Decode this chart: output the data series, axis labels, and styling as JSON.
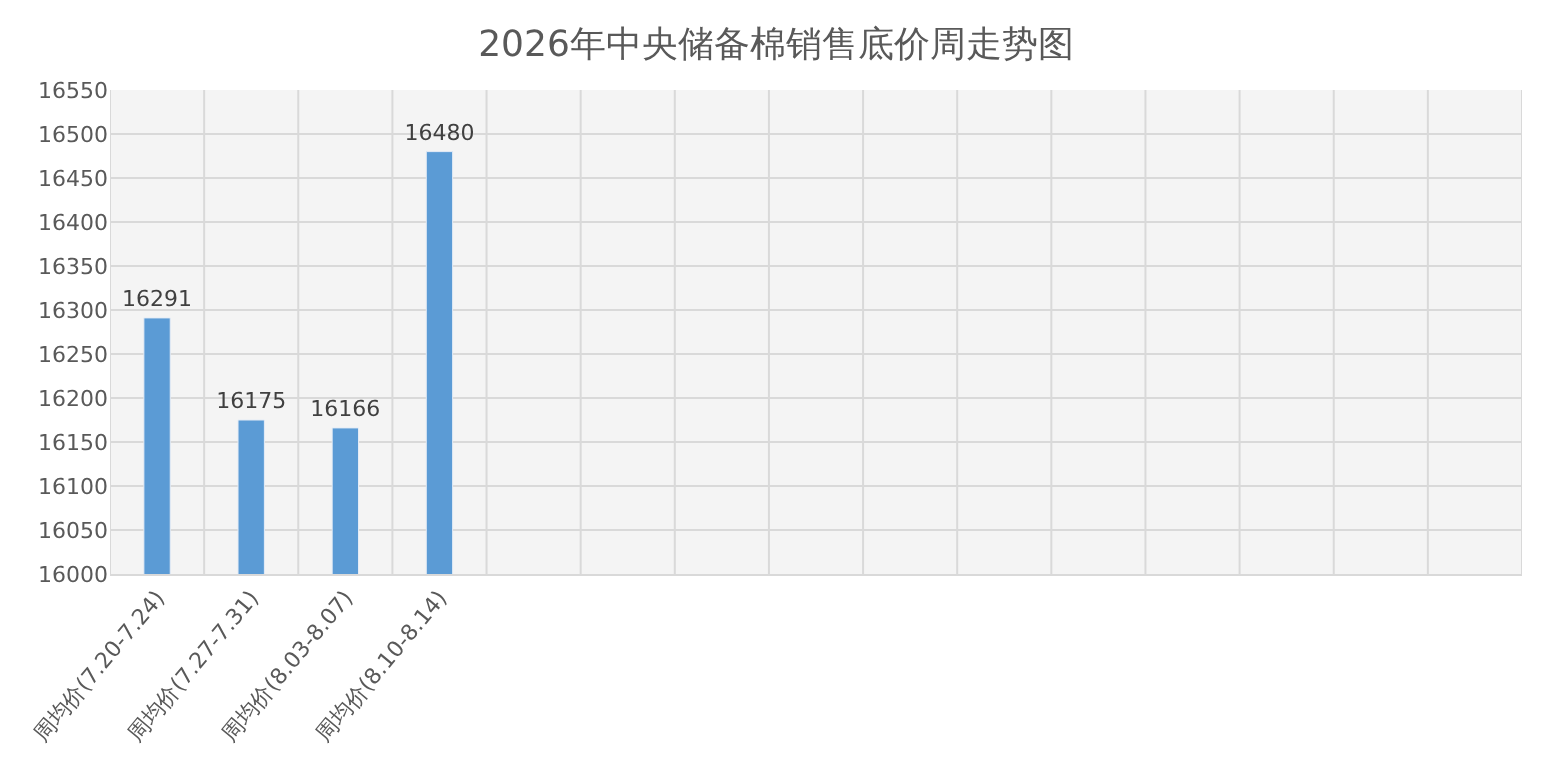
{
  "chart_data": {
    "type": "bar",
    "title": "2026年中央储备棉销售底价周走势图",
    "categories": [
      "周均价(7.20-7.24)",
      "周均价(7.27-7.31)",
      "周均价(8.03-8.07)",
      "周均价(8.10-8.14)",
      null,
      null,
      null,
      null,
      null,
      null,
      null,
      null,
      null,
      null,
      null
    ],
    "values": [
      16291,
      16175,
      16166,
      16480,
      null,
      null,
      null,
      null,
      null,
      null,
      null,
      null,
      null,
      null,
      null
    ],
    "color": "#5b9bd5",
    "ylim": [
      16000,
      16550
    ],
    "yticks": [
      16000,
      16050,
      16100,
      16150,
      16200,
      16250,
      16300,
      16350,
      16400,
      16450,
      16500,
      16550
    ],
    "grid": true,
    "data_labels": true
  }
}
